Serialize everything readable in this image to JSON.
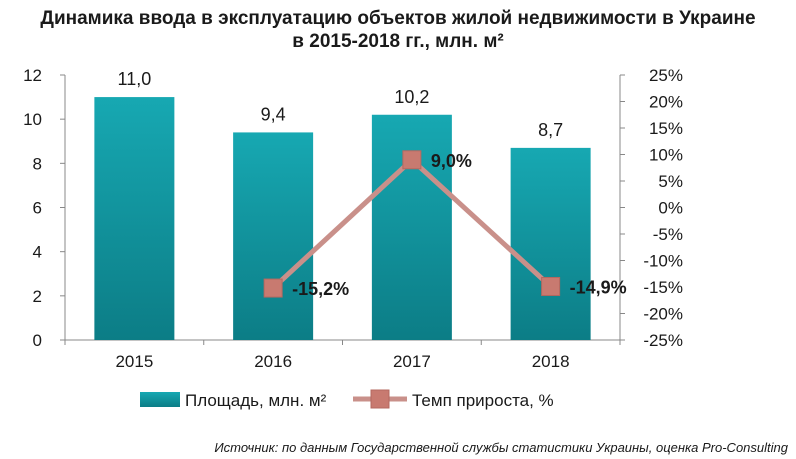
{
  "chart_data": {
    "type": "bar",
    "title_line1": "Динамика ввода в эксплуатацию объектов жилой недвижимости в Украине",
    "title_line2": "в 2015-2018 гг., млн. м²",
    "categories": [
      "2015",
      "2016",
      "2017",
      "2018"
    ],
    "series": [
      {
        "name": "Площадь, млн. м²",
        "type": "bar",
        "axis": "left",
        "values": [
          11.0,
          9.4,
          10.2,
          8.7
        ],
        "labels": [
          "11,0",
          "9,4",
          "10,2",
          "8,7"
        ],
        "color": "#1aa3ad"
      },
      {
        "name": "Темп прироста, %",
        "type": "line",
        "axis": "right",
        "values": [
          null,
          -15.2,
          9.0,
          -14.9
        ],
        "labels": [
          "",
          "-15,2%",
          "9,0%",
          "-14,9%"
        ],
        "color": "#c9908a"
      }
    ],
    "y_left": {
      "ylim": [
        0,
        12
      ],
      "ticks": [
        "0",
        "2",
        "4",
        "6",
        "8",
        "10",
        "12"
      ]
    },
    "y_right": {
      "ylim": [
        -25,
        25
      ],
      "ticks": [
        "-25%",
        "-20%",
        "-15%",
        "-10%",
        "-5%",
        "0%",
        "5%",
        "10%",
        "15%",
        "20%",
        "25%"
      ]
    },
    "legend_position": "bottom",
    "grid": false
  },
  "source": "Источник: по данным Государственной службы статистики Украины, оценка Pro-Consulting"
}
